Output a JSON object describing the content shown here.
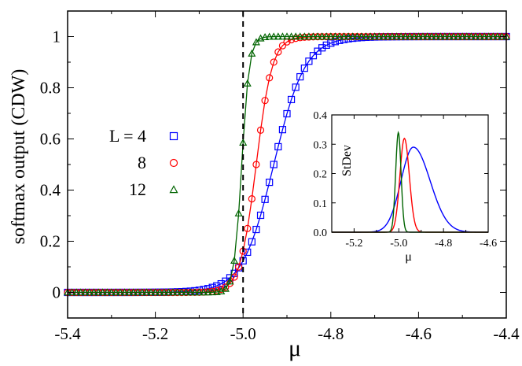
{
  "chart_data": [
    {
      "type": "line",
      "title": "",
      "xlabel": "μ",
      "ylabel": "softmax output (CDW)",
      "xlim": [
        -5.4,
        -4.4
      ],
      "ylim": [
        -0.1,
        1.1
      ],
      "xticks": [
        -5.4,
        -5.2,
        -5.0,
        -4.8,
        -4.6,
        -4.4
      ],
      "xtick_labels": [
        "-5.4",
        "-5.2",
        "-5.0",
        "-4.8",
        "-4.6",
        "-4.4"
      ],
      "yticks": [
        0,
        0.2,
        0.4,
        0.6,
        0.8,
        1
      ],
      "ytick_labels": [
        "0",
        "0.2",
        "0.4",
        "0.6",
        "0.8",
        "1"
      ],
      "grid": false,
      "vline": {
        "x": -5.0,
        "style": "dashed",
        "color": "#000000"
      },
      "legend": {
        "position": "left-middle",
        "title": "L =",
        "entries": [
          {
            "label": "L = 4",
            "marker": "square",
            "color": "#0000ff"
          },
          {
            "label": "8",
            "marker": "circle",
            "color": "#ff0000"
          },
          {
            "label": "12",
            "marker": "triangle",
            "color": "#006400"
          }
        ]
      },
      "series": [
        {
          "name": "L = 4",
          "color": "#0000ff",
          "marker": "square",
          "model": "logistic",
          "center": -4.93,
          "k": 28,
          "x_start": -5.4,
          "x_end": -4.4,
          "step": 0.01,
          "sample_points": [
            [
              -5.01,
              0.1
            ],
            [
              -4.93,
              0.5
            ],
            [
              -4.855,
              0.9
            ],
            [
              -4.7,
              1.0
            ]
          ]
        },
        {
          "name": "L = 8",
          "color": "#ff0000",
          "marker": "circle",
          "model": "logistic",
          "center": -4.97,
          "k": 55,
          "x_start": -5.4,
          "x_end": -4.4,
          "step": 0.01,
          "sample_points": [
            [
              -5.01,
              0.1
            ],
            [
              -4.97,
              0.5
            ],
            [
              -4.93,
              0.92
            ],
            [
              -4.85,
              1.0
            ]
          ]
        },
        {
          "name": "L = 12",
          "color": "#006400",
          "marker": "triangle",
          "model": "logistic",
          "center": -5.003,
          "k": 115,
          "x_start": -5.4,
          "x_end": -4.4,
          "step": 0.01,
          "sample_points": [
            [
              -5.02,
              0.18
            ],
            [
              -5.0,
              0.57
            ],
            [
              -4.985,
              0.92
            ],
            [
              -4.95,
              1.0
            ]
          ]
        }
      ]
    },
    {
      "type": "line",
      "title": "",
      "xlabel": "μ",
      "ylabel": "StDev",
      "xlim": [
        -5.3,
        -4.6
      ],
      "ylim": [
        0,
        0.4
      ],
      "xticks": [
        -5.2,
        -5.0,
        -4.8,
        -4.6
      ],
      "xtick_labels": [
        "-5.2",
        "-5.0",
        "-4.8",
        "-4.6"
      ],
      "yticks": [
        0,
        0.1,
        0.2,
        0.3,
        0.4
      ],
      "ytick_labels": [
        "0.0",
        "0.1",
        "0.2",
        "0.3",
        "0.4"
      ],
      "grid": false,
      "series": [
        {
          "name": "L = 4",
          "color": "#0000ff",
          "peak_x": -4.935,
          "peak_y": 0.29,
          "sigma_left": 0.055,
          "sigma_right": 0.075
        },
        {
          "name": "L = 8",
          "color": "#ff0000",
          "peak_x": -4.975,
          "peak_y": 0.32,
          "sigma_left": 0.02,
          "sigma_right": 0.022
        },
        {
          "name": "L = 12",
          "color": "#006400",
          "peak_x": -5.002,
          "peak_y": 0.34,
          "sigma_left": 0.012,
          "sigma_right": 0.012
        }
      ]
    }
  ]
}
